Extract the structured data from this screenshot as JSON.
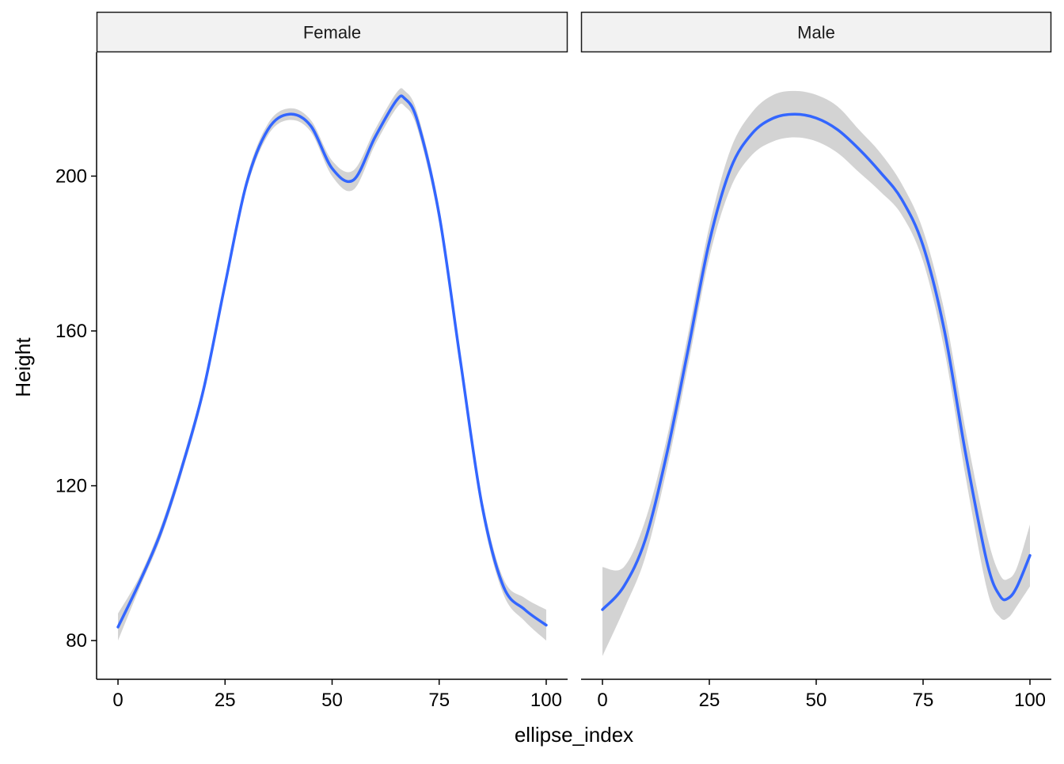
{
  "chart_data": {
    "type": "line",
    "xlabel": "ellipse_index",
    "ylabel": "Height",
    "xlim": [
      -5,
      105
    ],
    "ylim": [
      70,
      232
    ],
    "x_ticks": [
      0,
      25,
      50,
      75,
      100
    ],
    "y_ticks": [
      80,
      120,
      160,
      200
    ],
    "grid": false,
    "colors": {
      "line": "#3366FF",
      "ribbon": "#D3D3D3",
      "strip_fill": "#F2F2F2"
    },
    "panels": [
      {
        "label": "Female",
        "x": [
          0,
          5,
          10,
          15,
          20,
          25,
          30,
          35,
          40,
          45,
          50,
          55,
          60,
          65,
          67,
          70,
          75,
          80,
          85,
          90,
          95,
          100
        ],
        "y": [
          83.5,
          95,
          108,
          125,
          145,
          172,
          198,
          212,
          216,
          213,
          202,
          199,
          210,
          219.5,
          220,
          214,
          190,
          152,
          115,
          94,
          88,
          84
        ],
        "lower": [
          80,
          93.5,
          106.5,
          123.5,
          143.5,
          170.5,
          196.5,
          210.5,
          214.5,
          211.5,
          200,
          196.5,
          208,
          217.5,
          218,
          212,
          188,
          150,
          113,
          92,
          85,
          80
        ],
        "upper": [
          87,
          96.5,
          109.5,
          126.5,
          146.5,
          173.5,
          199.5,
          213.5,
          217.5,
          214.5,
          204,
          201.5,
          212,
          221.5,
          222,
          216,
          192,
          154,
          117,
          96,
          91,
          88
        ]
      },
      {
        "label": "Male",
        "x": [
          0,
          5,
          10,
          15,
          20,
          25,
          30,
          35,
          40,
          45,
          50,
          55,
          60,
          65,
          70,
          75,
          80,
          85,
          90,
          93,
          95,
          97,
          100
        ],
        "y": [
          88,
          94,
          106,
          128,
          155,
          183,
          202,
          211,
          215,
          216,
          215,
          212,
          207,
          201,
          194,
          182,
          160,
          128,
          100,
          91.5,
          91,
          94,
          102
        ],
        "lower": [
          76,
          88,
          101.5,
          124,
          151,
          179,
          197,
          205.5,
          209,
          210,
          209,
          206,
          201,
          196,
          190,
          178,
          155,
          122,
          93,
          86,
          86,
          89,
          94
        ],
        "upper": [
          99,
          99,
          111,
          132,
          159,
          187,
          207,
          216.5,
          221,
          222,
          221,
          218,
          212,
          206,
          198,
          186,
          165,
          134,
          107,
          97,
          96,
          99,
          110
        ]
      }
    ]
  }
}
